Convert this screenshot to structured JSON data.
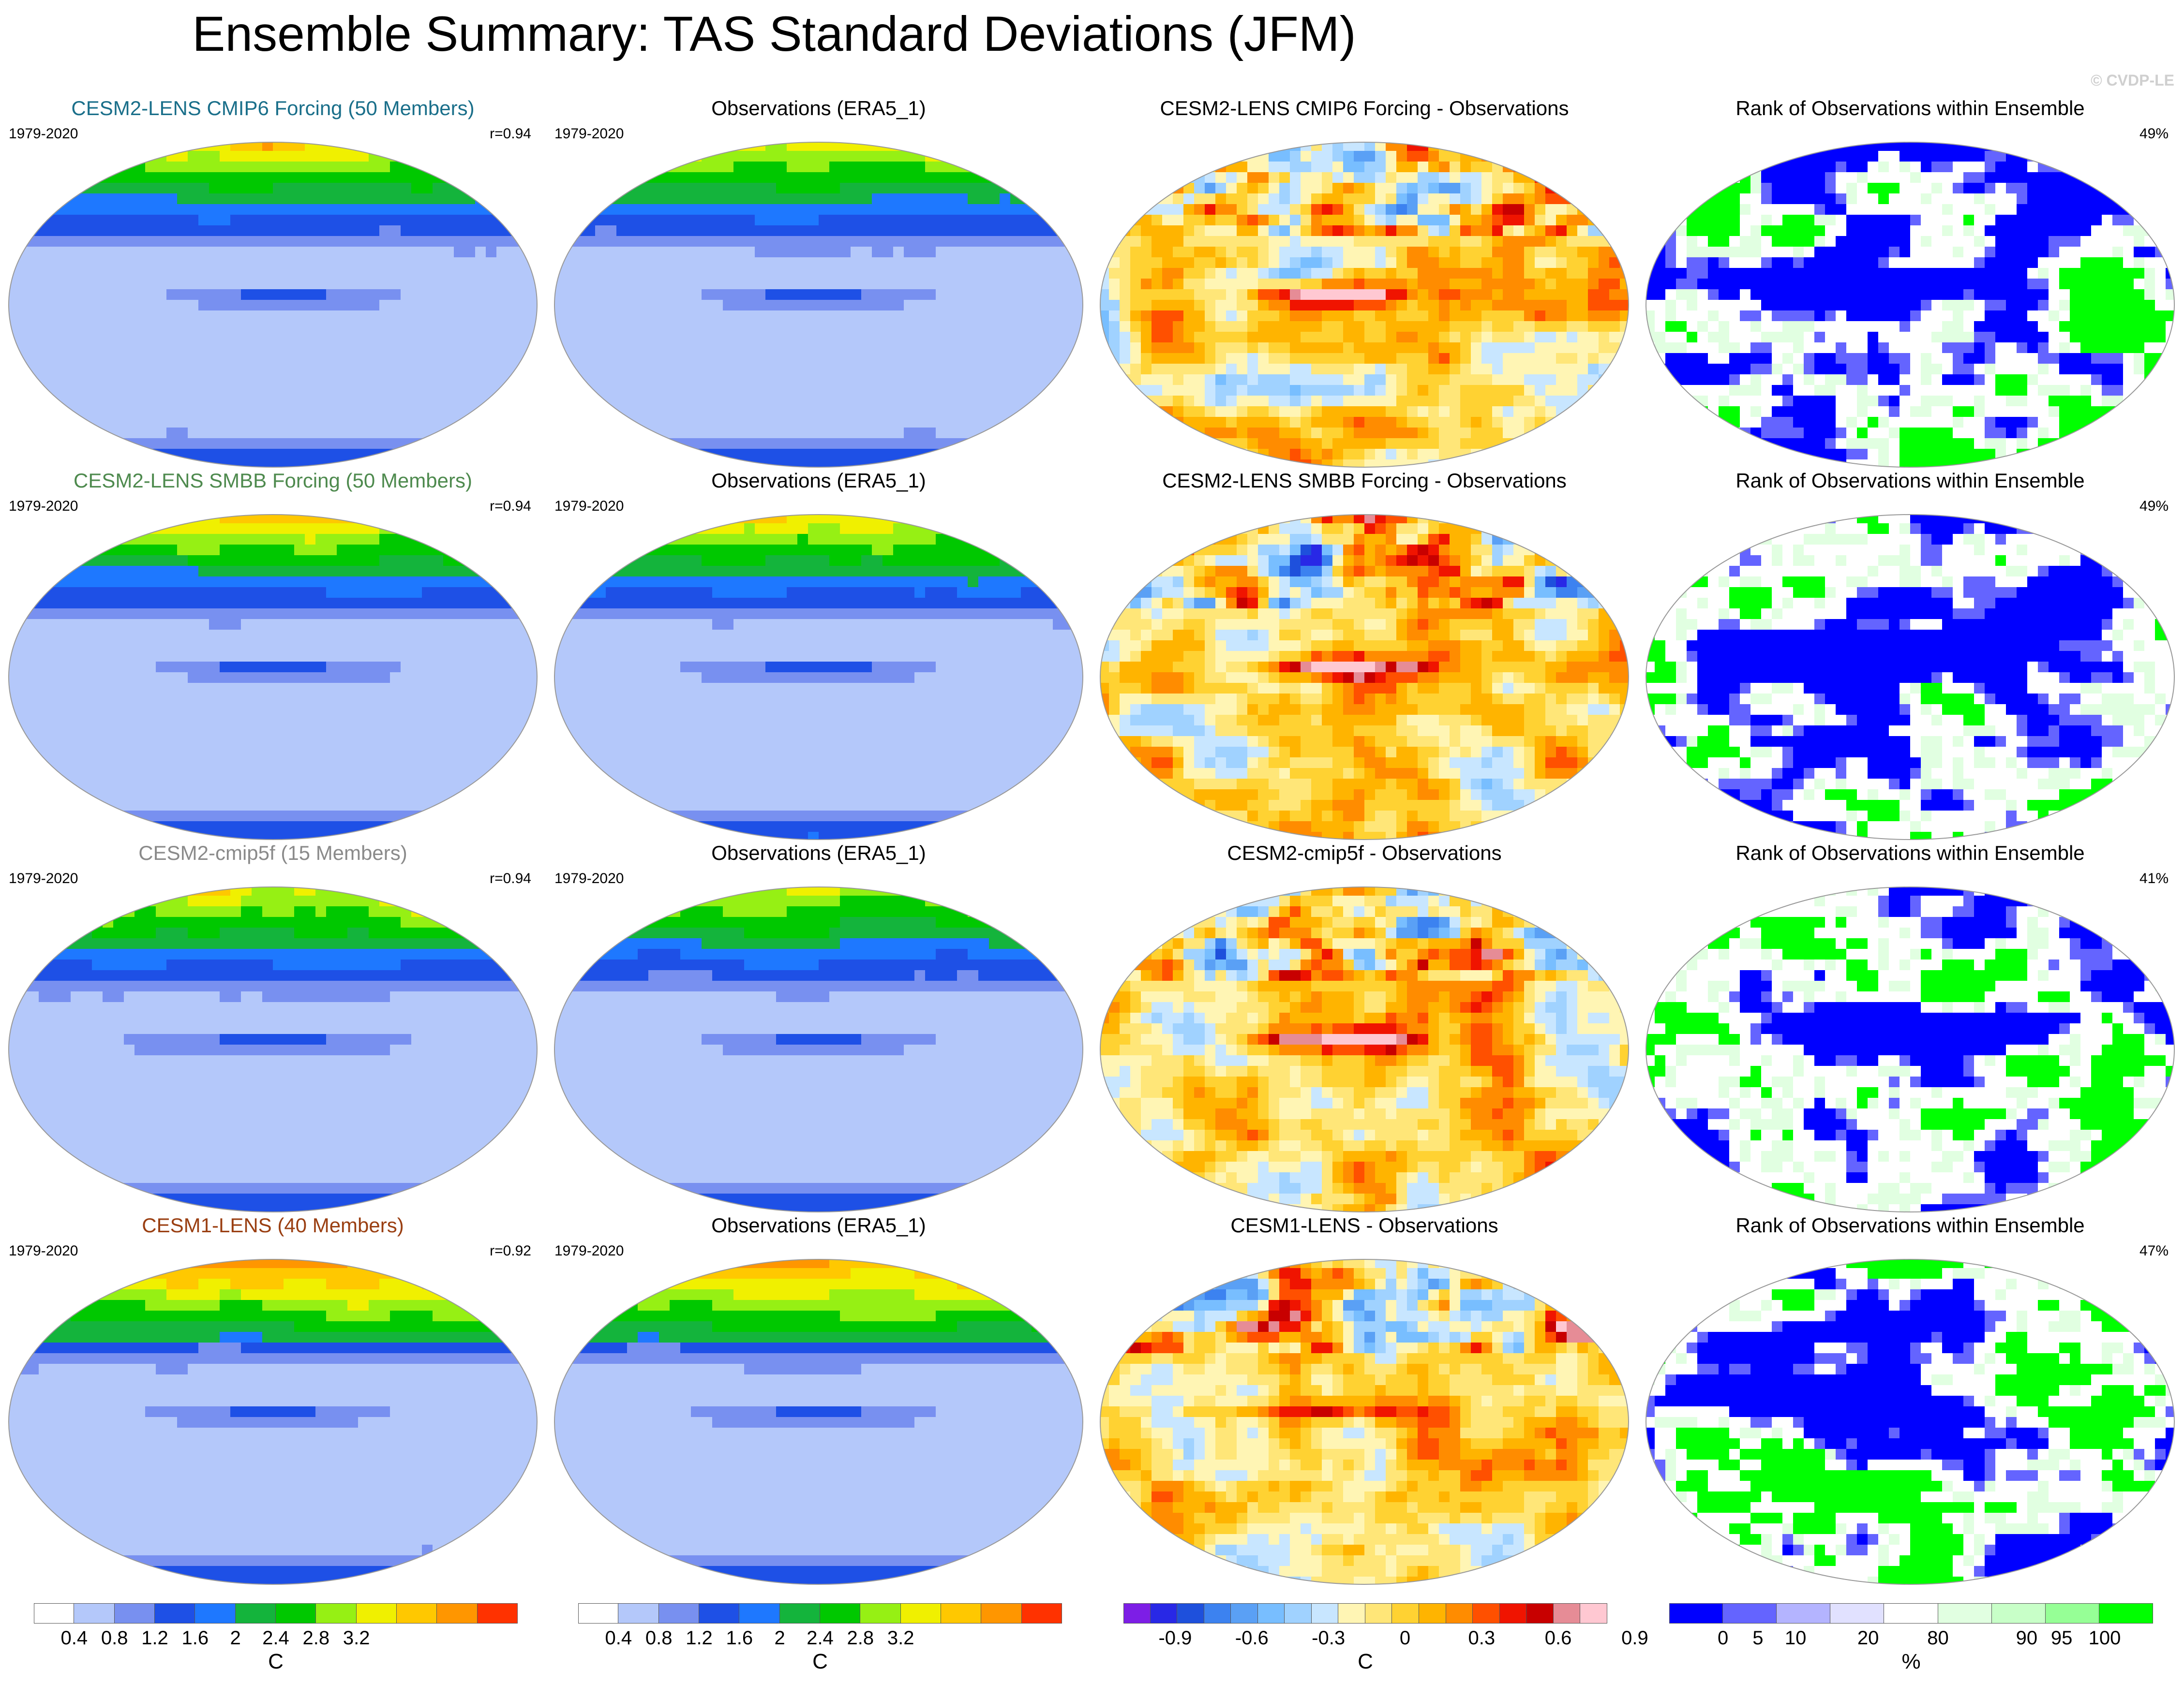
{
  "title": "Ensemble Summary: TAS Standard Deviations (JFM)",
  "credit": "© CVDP-LE",
  "rows": [
    {
      "model": {
        "title": "CESM2-LENS CMIP6 Forcing (50 Members)",
        "title_color": "#1a6f8a",
        "period": "1979-2020",
        "r": "r=0.94"
      },
      "obs": {
        "title": "Observations (ERA5_1)",
        "period": "1979-2020"
      },
      "diff": {
        "title": "CESM2-LENS CMIP6 Forcing - Observations"
      },
      "rank": {
        "title": "Rank of Observations within Ensemble",
        "pct": "49%"
      }
    },
    {
      "model": {
        "title": "CESM2-LENS SMBB Forcing (50 Members)",
        "title_color": "#4e8a4e",
        "period": "1979-2020",
        "r": "r=0.94"
      },
      "obs": {
        "title": "Observations (ERA5_1)",
        "period": "1979-2020"
      },
      "diff": {
        "title": "CESM2-LENS SMBB Forcing - Observations"
      },
      "rank": {
        "title": "Rank of Observations within Ensemble",
        "pct": "49%"
      }
    },
    {
      "model": {
        "title": "CESM2-cmip5f (15 Members)",
        "title_color": "#8a8a8a",
        "period": "1979-2020",
        "r": "r=0.94"
      },
      "obs": {
        "title": "Observations (ERA5_1)",
        "period": "1979-2020"
      },
      "diff": {
        "title": "CESM2-cmip5f - Observations"
      },
      "rank": {
        "title": "Rank of Observations within Ensemble",
        "pct": "41%"
      }
    },
    {
      "model": {
        "title": "CESM1-LENS (40 Members)",
        "title_color": "#9a3f12",
        "period": "1979-2020",
        "r": "r=0.92"
      },
      "obs": {
        "title": "Observations (ERA5_1)",
        "period": "1979-2020"
      },
      "diff": {
        "title": "CESM1-LENS - Observations"
      },
      "rank": {
        "title": "Rank of Observations within Ensemble",
        "pct": "47%"
      }
    }
  ],
  "colorbars": [
    {
      "unit": "C",
      "colors": [
        "#ffffff",
        "#b4c8fa",
        "#7890f0",
        "#1e50e6",
        "#1e78ff",
        "#14b43c",
        "#00c800",
        "#96f014",
        "#f0f000",
        "#ffc800",
        "#ff9600",
        "#ff3200"
      ],
      "labels": [
        "0.4",
        "0.8",
        "1.2",
        "1.6",
        "2",
        "2.4",
        "2.8",
        "3.2"
      ]
    },
    {
      "unit": "C",
      "colors": [
        "#ffffff",
        "#b4c8fa",
        "#7890f0",
        "#1e50e6",
        "#1e78ff",
        "#14b43c",
        "#00c800",
        "#96f014",
        "#f0f000",
        "#ffc800",
        "#ff9600",
        "#ff3200"
      ],
      "labels": [
        "0.4",
        "0.8",
        "1.2",
        "1.6",
        "2",
        "2.4",
        "2.8",
        "3.2"
      ]
    },
    {
      "unit": "C",
      "colors": [
        "#7d1ee6",
        "#2828e6",
        "#1e50dc",
        "#3c82f0",
        "#5aa0f5",
        "#78beff",
        "#a0d2ff",
        "#c8e6ff",
        "#fff5b4",
        "#ffe678",
        "#ffd232",
        "#ffb400",
        "#ff8c00",
        "#ff5000",
        "#f01400",
        "#c80000",
        "#e68c96",
        "#ffc8d2"
      ],
      "labels": [
        "-0.9",
        "-0.6",
        "-0.3",
        "0",
        "0.3",
        "0.6",
        "0.9"
      ]
    },
    {
      "unit": "%",
      "colors": [
        "#0000ff",
        "#6464ff",
        "#b4b4ff",
        "#e1e1ff",
        "#ffffff",
        "#e1ffe1",
        "#c8ffc8",
        "#96ff96",
        "#00ff00"
      ],
      "labels": [
        "0",
        "5",
        "10",
        "20",
        "80",
        "90",
        "95",
        "100"
      ]
    }
  ]
}
